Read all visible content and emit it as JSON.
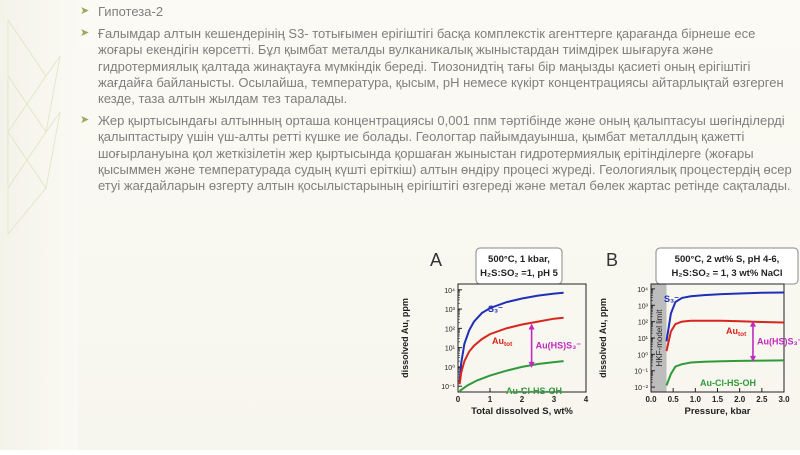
{
  "slide": {
    "bullets": [
      {
        "text": "Гипотеза-2"
      },
      {
        "text": "Ғалымдар алтын кешендерінің S3- тотығымен ерігіштігі басқа комплекстік агенттерге қарағанда бірнеше есе жоғары екендігін көрсетті. Бұл қымбат металды вулканикалық жыныстардан тиімдірек шығаруға және гидротермиялық қалтада жинақтауға мүмкіндік береді. Тиозонидтің тағы бір маңызды қасиеті оның ерігіштігі жағдайға байланысты. Осылайша, температура, қысым, pH немесе күкірт концентрациясы айтарлықтай өзгерген кезде, таза алтын жылдам тез таралады."
      },
      {
        "text": "Жер қыртысындағы алтынның орташа концентрациясы 0,001 ппм тәртібінде және оның қалыптасуы шөгінділерді қалыптастыру үшін үш-алты реттi күшке ие болады. Геологтар пайымдауынша, қымбат металлдың қажетті шоғырлануына қол жеткізілетін жер қыртысында қоршаған жыныстан гидротермиялық ерітінділерге (жоғары қысыммен және температурада судың күшті еріткіш) алтын өндіру процесі жүреді. Геологиялық процестердің өсер етуі жағдайларын өзгерту алтын қосылыстарының ерігіштігі өзгереді және метал бөлек жартас ретінде сақталады."
      }
    ],
    "colors": {
      "accent": "#9aa85a",
      "text": "#7f7f7f"
    }
  },
  "chart_data": [
    {
      "type": "line",
      "panel_label": "A",
      "conditions": [
        "500°C, 1 kbar,",
        "H₂S:SO₂ =1, pH 5"
      ],
      "xlabel": "Total dissolved S, wt%",
      "ylabel": "dissolved Au, ppm",
      "x_ticks": [
        "0",
        "1",
        "2",
        "3",
        "4"
      ],
      "y_ticks": [
        "10⁻¹",
        "10⁰",
        "10¹",
        "10²",
        "10³",
        "10⁴"
      ],
      "xlim": [
        0,
        4
      ],
      "ylim_log10": [
        -1.3,
        4.3
      ],
      "series": [
        {
          "name": "S₃⁻",
          "color": "#1f2fb8",
          "x": [
            0.05,
            0.1,
            0.2,
            0.35,
            0.5,
            0.75,
            1.0,
            1.5,
            2.0,
            2.5,
            3.0,
            3.3
          ],
          "log10_y": [
            -0.8,
            0.2,
            1.2,
            1.9,
            2.35,
            2.8,
            3.05,
            3.35,
            3.55,
            3.7,
            3.8,
            3.85
          ]
        },
        {
          "name": "Au",
          "label_sub": "tot",
          "color": "#d7261e",
          "x": [
            0.05,
            0.1,
            0.2,
            0.35,
            0.5,
            0.75,
            1.0,
            1.5,
            2.0,
            2.5,
            3.0,
            3.3
          ],
          "log10_y": [
            -0.9,
            -0.3,
            0.3,
            0.8,
            1.1,
            1.45,
            1.7,
            2.0,
            2.2,
            2.35,
            2.5,
            2.55
          ]
        },
        {
          "name": "Au-Cl-HS-OH",
          "color": "#2f9a3a",
          "x": [
            0.05,
            0.3,
            0.6,
            1.0,
            1.5,
            2.0,
            2.5,
            3.0,
            3.3
          ],
          "log10_y": [
            -1.25,
            -0.95,
            -0.7,
            -0.45,
            -0.2,
            0.0,
            0.15,
            0.25,
            0.3
          ]
        }
      ],
      "annotation": {
        "text": "Au(HS)S₃⁻",
        "x": 2.3,
        "log10_y_from": 0.0,
        "log10_y_to": 2.2
      }
    },
    {
      "type": "line",
      "panel_label": "B",
      "conditions": [
        "500°C, 2 wt% S, pH 4-6,",
        "H₂S:SO₂ = 1, 3 wt% NaCl"
      ],
      "xlabel": "Pressure, kbar",
      "ylabel": "dissolved Au, ppm",
      "shaded_region_label": "HKF-model limit",
      "shaded_region_x": [
        0,
        0.35
      ],
      "x_ticks": [
        "0.0",
        "0.5",
        "1.0",
        "1.5",
        "2.0",
        "2.5",
        "3.0"
      ],
      "y_ticks": [
        "10⁻²",
        "10⁻¹",
        "10⁰",
        "10¹",
        "10²",
        "10³",
        "10⁴"
      ],
      "xlim": [
        0,
        3.0
      ],
      "ylim_log10": [
        -2.3,
        4.3
      ],
      "series": [
        {
          "name": "S₃⁻",
          "color": "#1f2fb8",
          "x": [
            0.35,
            0.45,
            0.55,
            0.7,
            0.9,
            1.2,
            1.6,
            2.0,
            2.5,
            3.0
          ],
          "log10_y": [
            0.8,
            2.5,
            3.2,
            3.45,
            3.55,
            3.62,
            3.68,
            3.72,
            3.76,
            3.78
          ]
        },
        {
          "name": "Au",
          "label_sub": "tot",
          "color": "#d7261e",
          "x": [
            0.35,
            0.45,
            0.55,
            0.7,
            0.9,
            1.2,
            1.6,
            2.0,
            2.5,
            3.0
          ],
          "log10_y": [
            0.2,
            1.4,
            1.85,
            2.0,
            2.05,
            2.05,
            2.05,
            2.02,
            1.98,
            1.95
          ]
        },
        {
          "name": "Au-Cl-HS-OH",
          "color": "#2f9a3a",
          "x": [
            0.35,
            0.45,
            0.55,
            0.7,
            0.9,
            1.2,
            1.6,
            2.0,
            2.5,
            3.0
          ],
          "log10_y": [
            -1.9,
            -1.2,
            -0.75,
            -0.6,
            -0.5,
            -0.45,
            -0.42,
            -0.4,
            -0.38,
            -0.37
          ]
        }
      ],
      "annotation": {
        "text": "Au(HS)S₃⁻",
        "x": 2.3,
        "log10_y_from": -0.4,
        "log10_y_to": 2.0
      }
    }
  ]
}
